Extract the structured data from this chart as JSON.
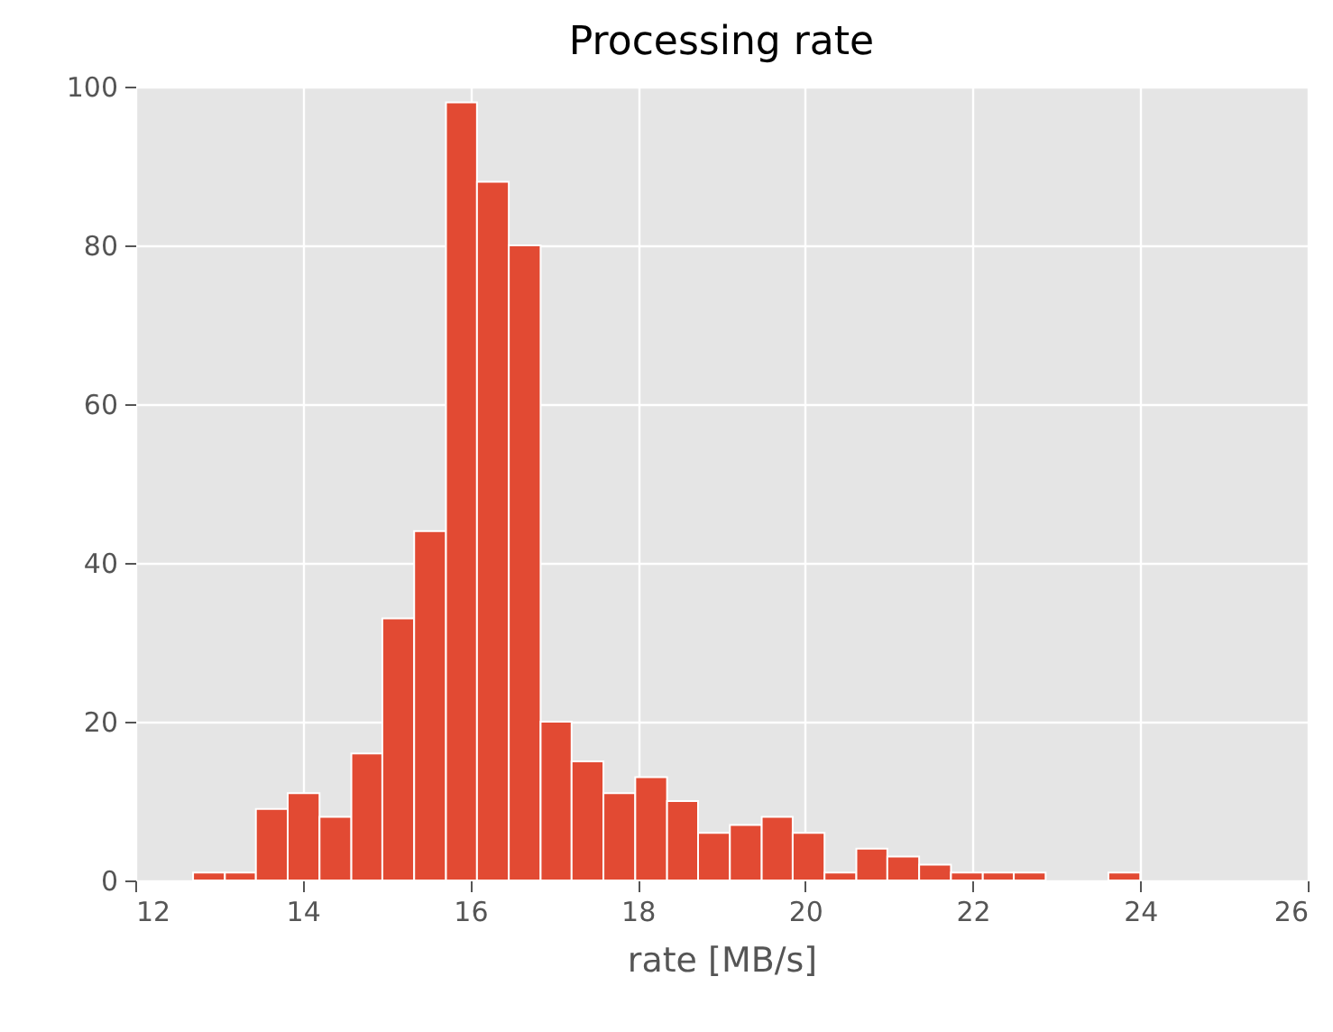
{
  "chart_data": {
    "type": "histogram",
    "title": "Processing rate",
    "xlabel": "rate [MB/s]",
    "bins": [
      12.69,
      13.07,
      13.44,
      13.82,
      14.2,
      14.58,
      14.95,
      15.33,
      15.71,
      16.08,
      16.46,
      16.84,
      17.21,
      17.59,
      17.97,
      18.35,
      18.72,
      19.1,
      19.48,
      19.85,
      20.23,
      20.61,
      20.98,
      21.36,
      21.74,
      22.12,
      22.49,
      22.87,
      23.62,
      24.0
    ],
    "values": [
      1,
      1,
      9,
      11,
      8,
      16,
      33,
      44,
      98,
      88,
      80,
      20,
      15,
      11,
      13,
      10,
      6,
      7,
      8,
      6,
      1,
      4,
      3,
      2,
      1,
      1,
      1,
      0,
      1
    ],
    "color": "#e24a33",
    "xlim": [
      12,
      26
    ],
    "xticks": [
      12,
      14,
      16,
      18,
      20,
      22,
      24,
      26
    ],
    "ylim": [
      0,
      100
    ],
    "yticks": [
      0,
      20,
      40,
      60,
      80,
      100
    ],
    "grid": true
  }
}
